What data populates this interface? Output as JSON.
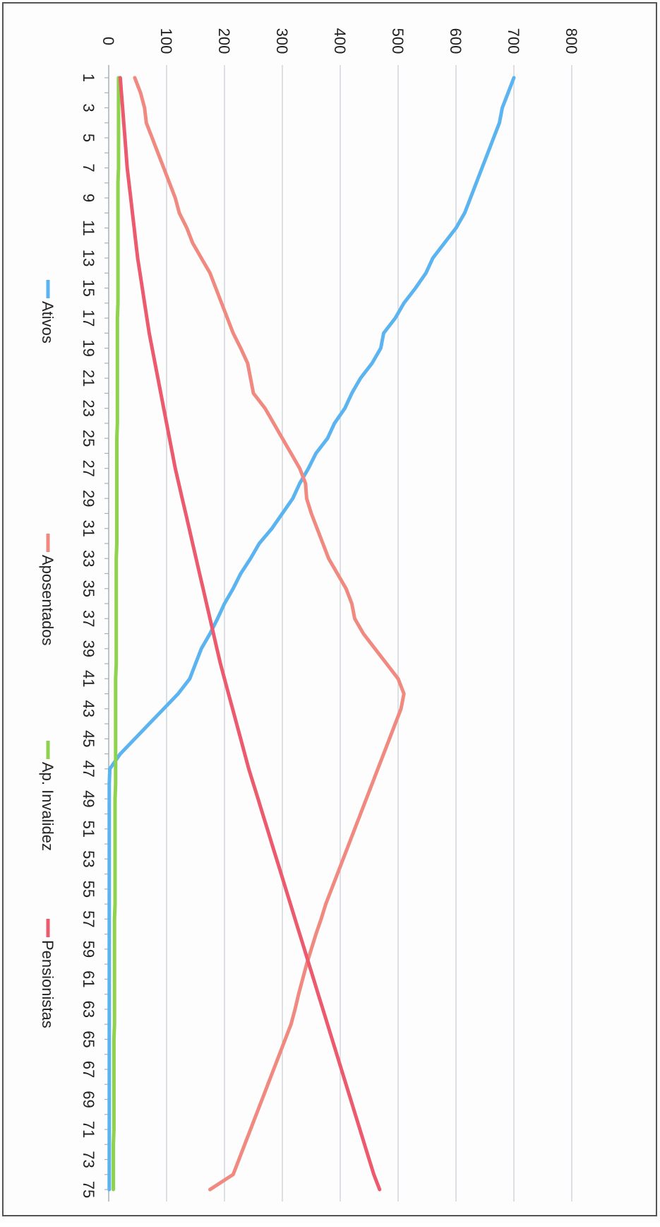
{
  "chart_data": {
    "type": "line",
    "orientation": "rotated-90-clockwise",
    "x": [
      1,
      2,
      3,
      4,
      5,
      6,
      7,
      8,
      9,
      10,
      11,
      12,
      13,
      14,
      15,
      16,
      17,
      18,
      19,
      20,
      21,
      22,
      23,
      24,
      25,
      26,
      27,
      28,
      29,
      30,
      31,
      32,
      33,
      34,
      35,
      36,
      37,
      38,
      39,
      40,
      41,
      42,
      43,
      44,
      45,
      46,
      47,
      48,
      49,
      50,
      51,
      52,
      53,
      54,
      55,
      56,
      57,
      58,
      59,
      60,
      61,
      62,
      63,
      64,
      65,
      66,
      67,
      68,
      69,
      70,
      71,
      72,
      73,
      74,
      75
    ],
    "x_tick_labels": [
      "1",
      "3",
      "5",
      "7",
      "9",
      "11",
      "13",
      "15",
      "17",
      "19",
      "21",
      "23",
      "25",
      "27",
      "29",
      "31",
      "33",
      "35",
      "37",
      "39",
      "41",
      "43",
      "45",
      "47",
      "49",
      "51",
      "53",
      "55",
      "57",
      "59",
      "61",
      "63",
      "65",
      "67",
      "69",
      "71",
      "73",
      "75"
    ],
    "ylim": [
      0,
      800
    ],
    "y_ticks": [
      0,
      100,
      200,
      300,
      400,
      500,
      600,
      700,
      800
    ],
    "grid": true,
    "legend_position": "bottom",
    "series": [
      {
        "name": "Ativos",
        "color": "#5BB4F0",
        "values": [
          700,
          690,
          680,
          675,
          665,
          655,
          645,
          635,
          625,
          615,
          600,
          580,
          560,
          548,
          530,
          510,
          495,
          475,
          470,
          455,
          435,
          420,
          408,
          390,
          378,
          358,
          345,
          330,
          318,
          300,
          282,
          260,
          245,
          228,
          215,
          200,
          188,
          175,
          160,
          150,
          140,
          120,
          95,
          70,
          45,
          20,
          2,
          1,
          1,
          1,
          1,
          1,
          1,
          1,
          1,
          1,
          1,
          1,
          1,
          1,
          1,
          1,
          1,
          1,
          1,
          1,
          1,
          1,
          1,
          1,
          1,
          1,
          1,
          1,
          1
        ]
      },
      {
        "name": "Aposentados",
        "color": "#F08A80",
        "values": [
          45,
          55,
          62,
          65,
          75,
          85,
          95,
          105,
          115,
          122,
          135,
          145,
          160,
          175,
          185,
          195,
          205,
          215,
          228,
          240,
          245,
          250,
          270,
          285,
          300,
          315,
          330,
          340,
          342,
          350,
          360,
          370,
          380,
          395,
          410,
          420,
          425,
          440,
          460,
          480,
          500,
          510,
          505,
          495,
          485,
          475,
          465,
          455,
          445,
          435,
          425,
          415,
          405,
          395,
          385,
          375,
          367,
          358,
          350,
          342,
          335,
          328,
          322,
          315,
          305,
          295,
          285,
          275,
          265,
          255,
          245,
          235,
          225,
          215,
          175
        ]
      },
      {
        "name": "Ap. Invalidez",
        "color": "#8FD24E",
        "values": [
          17,
          17,
          17,
          17,
          17,
          17,
          17,
          16,
          16,
          16,
          16,
          16,
          16,
          16,
          16,
          16,
          15,
          15,
          15,
          15,
          15,
          15,
          15,
          15,
          14,
          14,
          14,
          14,
          14,
          14,
          14,
          14,
          13,
          13,
          13,
          13,
          13,
          13,
          13,
          13,
          12,
          12,
          12,
          12,
          12,
          12,
          12,
          12,
          11,
          11,
          11,
          11,
          11,
          11,
          11,
          11,
          10,
          10,
          10,
          10,
          10,
          10,
          10,
          10,
          9,
          9,
          9,
          9,
          9,
          9,
          9,
          8,
          8,
          8,
          8
        ]
      },
      {
        "name": "Pensionistas",
        "color": "#EC5A6E",
        "values": [
          20,
          22,
          24,
          26,
          28,
          30,
          32,
          35,
          38,
          41,
          44,
          47,
          50,
          54,
          58,
          62,
          66,
          70,
          75,
          80,
          85,
          90,
          95,
          100,
          105,
          110,
          115,
          121,
          127,
          133,
          139,
          145,
          151,
          157,
          163,
          169,
          175,
          181,
          187,
          193,
          200,
          207,
          214,
          221,
          228,
          235,
          242,
          250,
          258,
          266,
          274,
          282,
          290,
          298,
          306,
          314,
          322,
          330,
          338,
          346,
          354,
          362,
          370,
          378,
          386,
          394,
          402,
          410,
          418,
          426,
          434,
          442,
          450,
          458,
          468
        ]
      }
    ]
  }
}
